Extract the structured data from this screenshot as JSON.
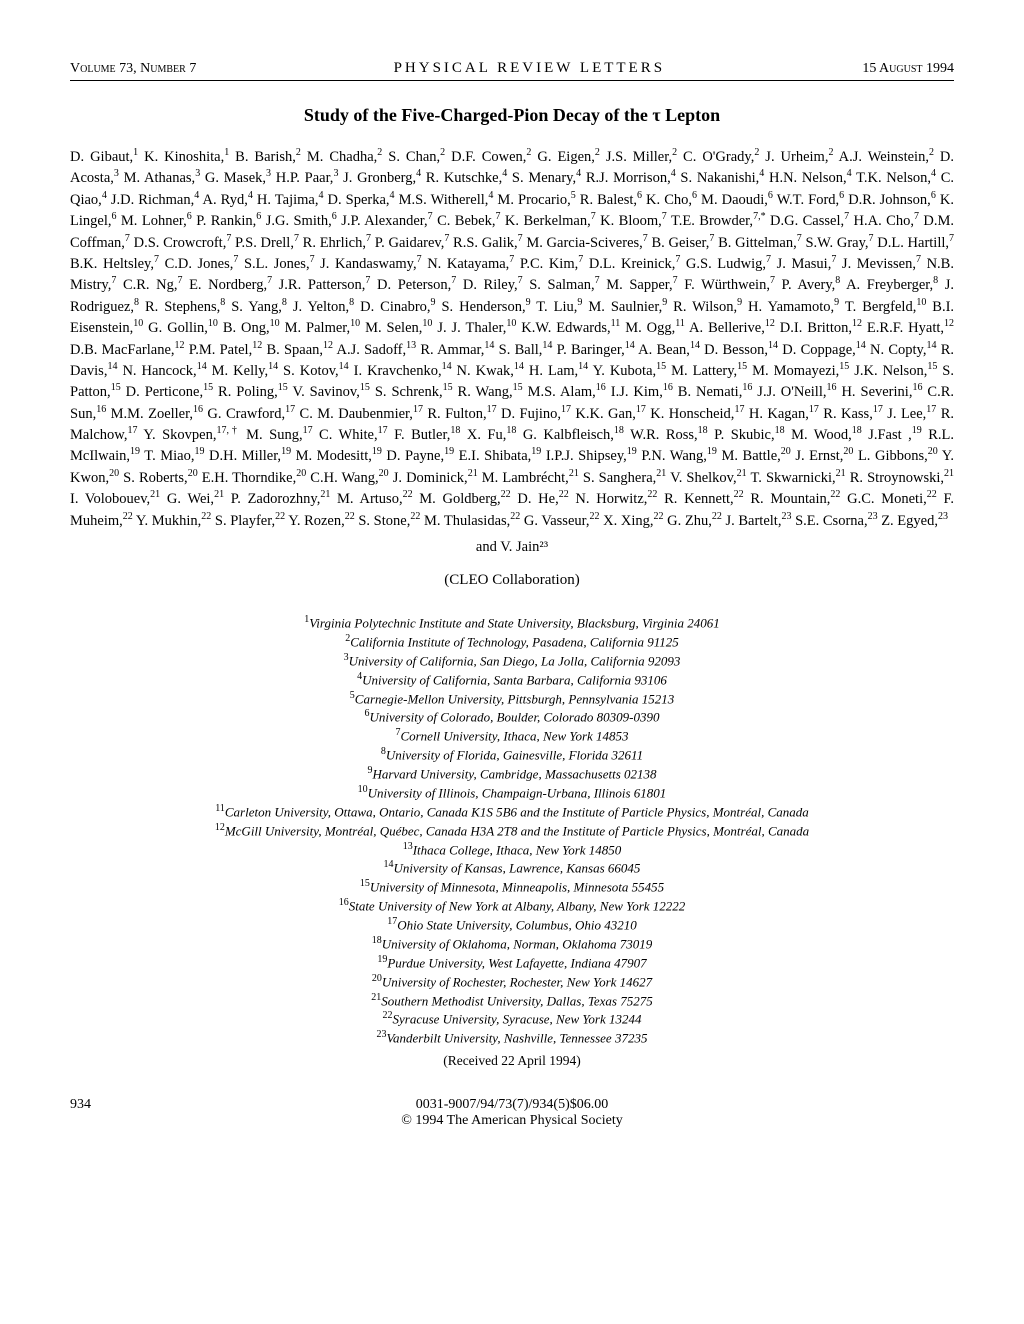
{
  "header": {
    "volume": "Volume 73, Number 7",
    "journal": "PHYSICAL REVIEW LETTERS",
    "date": "15 August 1994"
  },
  "title": "Study of the Five-Charged-Pion Decay of the τ Lepton",
  "authors_html": "D. Gibaut,<sup>1</sup> K. Kinoshita,<sup>1</sup> B. Barish,<sup>2</sup> M. Chadha,<sup>2</sup> S. Chan,<sup>2</sup> D.F. Cowen,<sup>2</sup> G. Eigen,<sup>2</sup> J.S. Miller,<sup>2</sup> C. O'Grady,<sup>2</sup> J. Urheim,<sup>2</sup> A.J. Weinstein,<sup>2</sup> D. Acosta,<sup>3</sup> M. Athanas,<sup>3</sup> G. Masek,<sup>3</sup> H.P. Paar,<sup>3</sup> J. Gronberg,<sup>4</sup> R. Kutschke,<sup>4</sup> S. Menary,<sup>4</sup> R.J. Morrison,<sup>4</sup> S. Nakanishi,<sup>4</sup> H.N. Nelson,<sup>4</sup> T.K. Nelson,<sup>4</sup> C. Qiao,<sup>4</sup> J.D. Richman,<sup>4</sup> A. Ryd,<sup>4</sup> H. Tajima,<sup>4</sup> D. Sperka,<sup>4</sup> M.S. Witherell,<sup>4</sup> M. Procario,<sup>5</sup> R. Balest,<sup>6</sup> K. Cho,<sup>6</sup> M. Daoudi,<sup>6</sup> W.T. Ford,<sup>6</sup> D.R. Johnson,<sup>6</sup> K. Lingel,<sup>6</sup> M. Lohner,<sup>6</sup> P. Rankin,<sup>6</sup> J.G. Smith,<sup>6</sup> J.P. Alexander,<sup>7</sup> C. Bebek,<sup>7</sup> K. Berkelman,<sup>7</sup> K. Bloom,<sup>7</sup> T.E. Browder,<sup>7,*</sup> D.G. Cassel,<sup>7</sup> H.A. Cho,<sup>7</sup> D.M. Coffman,<sup>7</sup> D.S. Crowcroft,<sup>7</sup> P.S. Drell,<sup>7</sup> R. Ehrlich,<sup>7</sup> P. Gaidarev,<sup>7</sup> R.S. Galik,<sup>7</sup> M. Garcia-Sciveres,<sup>7</sup> B. Geiser,<sup>7</sup> B. Gittelman,<sup>7</sup> S.W. Gray,<sup>7</sup> D.L. Hartill,<sup>7</sup> B.K. Heltsley,<sup>7</sup> C.D. Jones,<sup>7</sup> S.L. Jones,<sup>7</sup> J. Kandaswamy,<sup>7</sup> N. Katayama,<sup>7</sup> P.C. Kim,<sup>7</sup> D.L. Kreinick,<sup>7</sup> G.S. Ludwig,<sup>7</sup> J. Masui,<sup>7</sup> J. Mevissen,<sup>7</sup> N.B. Mistry,<sup>7</sup> C.R. Ng,<sup>7</sup> E. Nordberg,<sup>7</sup> J.R. Patterson,<sup>7</sup> D. Peterson,<sup>7</sup> D. Riley,<sup>7</sup> S. Salman,<sup>7</sup> M. Sapper,<sup>7</sup> F. Würthwein,<sup>7</sup> P. Avery,<sup>8</sup> A. Freyberger,<sup>8</sup> J. Rodriguez,<sup>8</sup> R. Stephens,<sup>8</sup> S. Yang,<sup>8</sup> J. Yelton,<sup>8</sup> D. Cinabro,<sup>9</sup> S. Henderson,<sup>9</sup> T. Liu,<sup>9</sup> M. Saulnier,<sup>9</sup> R. Wilson,<sup>9</sup> H. Yamamoto,<sup>9</sup> T. Bergfeld,<sup>10</sup> B.I. Eisenstein,<sup>10</sup> G. Gollin,<sup>10</sup> B. Ong,<sup>10</sup> M. Palmer,<sup>10</sup> M. Selen,<sup>10</sup> J. J. Thaler,<sup>10</sup> K.W. Edwards,<sup>11</sup> M. Ogg,<sup>11</sup> A. Bellerive,<sup>12</sup> D.I. Britton,<sup>12</sup> E.R.F. Hyatt,<sup>12</sup> D.B. MacFarlane,<sup>12</sup> P.M. Patel,<sup>12</sup> B. Spaan,<sup>12</sup> A.J. Sadoff,<sup>13</sup> R. Ammar,<sup>14</sup> S. Ball,<sup>14</sup> P. Baringer,<sup>14</sup> A. Bean,<sup>14</sup> D. Besson,<sup>14</sup> D. Coppage,<sup>14</sup> N. Copty,<sup>14</sup> R. Davis,<sup>14</sup> N. Hancock,<sup>14</sup> M. Kelly,<sup>14</sup> S. Kotov,<sup>14</sup> I. Kravchenko,<sup>14</sup> N. Kwak,<sup>14</sup> H. Lam,<sup>14</sup> Y. Kubota,<sup>15</sup> M. Lattery,<sup>15</sup> M. Momayezi,<sup>15</sup> J.K. Nelson,<sup>15</sup> S. Patton,<sup>15</sup> D. Perticone,<sup>15</sup> R. Poling,<sup>15</sup> V. Savinov,<sup>15</sup> S. Schrenk,<sup>15</sup> R. Wang,<sup>15</sup> M.S. Alam,<sup>16</sup> I.J. Kim,<sup>16</sup> B. Nemati,<sup>16</sup> J.J. O'Neill,<sup>16</sup> H. Severini,<sup>16</sup> C.R. Sun,<sup>16</sup> M.M. Zoeller,<sup>16</sup> G. Crawford,<sup>17</sup> C. M. Daubenmier,<sup>17</sup> R. Fulton,<sup>17</sup> D. Fujino,<sup>17</sup> K.K. Gan,<sup>17</sup> K. Honscheid,<sup>17</sup> H. Kagan,<sup>17</sup> R. Kass,<sup>17</sup> J. Lee,<sup>17</sup> R. Malchow,<sup>17</sup> Y. Skovpen,<sup>17,†</sup> M. Sung,<sup>17</sup> C. White,<sup>17</sup> F. Butler,<sup>18</sup> X. Fu,<sup>18</sup> G. Kalbfleisch,<sup>18</sup> W.R. Ross,<sup>18</sup> P. Skubic,<sup>18</sup> M. Wood,<sup>18</sup> J.Fast ,<sup>19</sup> R.L. McIlwain,<sup>19</sup> T. Miao,<sup>19</sup> D.H. Miller,<sup>19</sup> M. Modesitt,<sup>19</sup> D. Payne,<sup>19</sup> E.I. Shibata,<sup>19</sup> I.P.J. Shipsey,<sup>19</sup> P.N. Wang,<sup>19</sup> M. Battle,<sup>20</sup> J. Ernst,<sup>20</sup> L. Gibbons,<sup>20</sup> Y. Kwon,<sup>20</sup> S. Roberts,<sup>20</sup> E.H. Thorndike,<sup>20</sup> C.H. Wang,<sup>20</sup> J. Dominick,<sup>21</sup> M. Lambrécht,<sup>21</sup> S. Sanghera,<sup>21</sup> V. Shelkov,<sup>21</sup> T. Skwarnicki,<sup>21</sup> R. Stroynowski,<sup>21</sup> I. Volobouev,<sup>21</sup> G. Wei,<sup>21</sup> P. Zadorozhny,<sup>21</sup> M. Artuso,<sup>22</sup> M. Goldberg,<sup>22</sup> D. He,<sup>22</sup> N. Horwitz,<sup>22</sup> R. Kennett,<sup>22</sup> R. Mountain,<sup>22</sup> G.C. Moneti,<sup>22</sup> F. Muheim,<sup>22</sup> Y. Mukhin,<sup>22</sup> S. Playfer,<sup>22</sup> Y. Rozen,<sup>22</sup> S. Stone,<sup>22</sup> M. Thulasidas,<sup>22</sup> G. Vasseur,<sup>22</sup> X. Xing,<sup>22</sup> G. Zhu,<sup>22</sup> J. Bartelt,<sup>23</sup> S.E. Csorna,<sup>23</sup> Z. Egyed,<sup>23</sup>",
  "authors_tail": "and V. Jain²³",
  "collaboration": "(CLEO Collaboration)",
  "affiliations": [
    "<sup>1</sup>Virginia Polytechnic Institute and State University, Blacksburg, Virginia 24061",
    "<sup>2</sup>California Institute of Technology, Pasadena, California 91125",
    "<sup>3</sup>University of California, San Diego, La Jolla, California 92093",
    "<sup>4</sup>University of California, Santa Barbara, California 93106",
    "<sup>5</sup>Carnegie-Mellon University, Pittsburgh, Pennsylvania 15213",
    "<sup>6</sup>University of Colorado, Boulder, Colorado 80309-0390",
    "<sup>7</sup>Cornell University, Ithaca, New York 14853",
    "<sup>8</sup>University of Florida, Gainesville, Florida 32611",
    "<sup>9</sup>Harvard University, Cambridge, Massachusetts 02138",
    "<sup>10</sup>University of Illinois, Champaign-Urbana, Illinois 61801",
    "<sup>11</sup>Carleton University, Ottawa, Ontario, Canada K1S 5B6 and the Institute of Particle Physics, Montréal, Canada",
    "<sup>12</sup>McGill University, Montréal, Québec, Canada H3A 2T8 and the Institute of Particle Physics, Montréal, Canada",
    "<sup>13</sup>Ithaca College, Ithaca, New York 14850",
    "<sup>14</sup>University of Kansas, Lawrence, Kansas 66045",
    "<sup>15</sup>University of Minnesota, Minneapolis, Minnesota 55455",
    "<sup>16</sup>State University of New York at Albany, Albany, New York 12222",
    "<sup>17</sup>Ohio State University, Columbus, Ohio 43210",
    "<sup>18</sup>University of Oklahoma, Norman, Oklahoma 73019",
    "<sup>19</sup>Purdue University, West Lafayette, Indiana 47907",
    "<sup>20</sup>University of Rochester, Rochester, New York 14627",
    "<sup>21</sup>Southern Methodist University, Dallas, Texas 75275",
    "<sup>22</sup>Syracuse University, Syracuse, New York 13244",
    "<sup>23</sup>Vanderbilt University, Nashville, Tennessee 37235"
  ],
  "received": "(Received 22 April 1994)",
  "footer": {
    "page": "934",
    "ident": "0031-9007/94/73(7)/934(5)$06.00",
    "copyright": "© 1994 The American Physical Society"
  }
}
